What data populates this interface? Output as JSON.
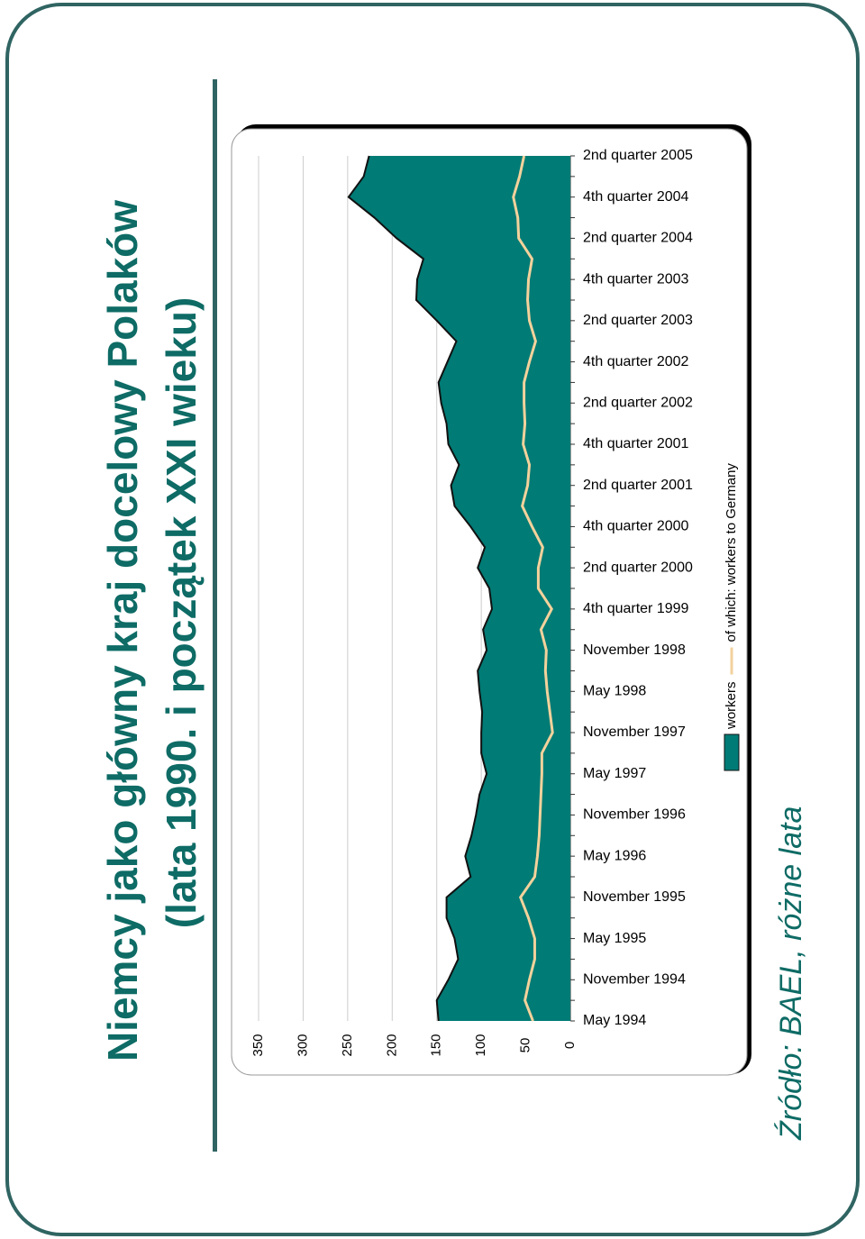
{
  "header": {
    "title_lines": [
      "Niemcy jako główny kraj docelowy Polaków",
      "(lata 1990. i początek XXI wieku)"
    ]
  },
  "footer": {
    "source": "Źródło: BAEL, różne lata"
  },
  "chart_data": {
    "type": "area",
    "categories": [
      "May 1994",
      null,
      "November 1994",
      null,
      "May 1995",
      null,
      "November 1995",
      null,
      "May 1996",
      null,
      "November 1996",
      null,
      "May 1997",
      null,
      "November 1997",
      null,
      "May 1998",
      null,
      "November 1998",
      null,
      "4th quarter 1999",
      null,
      "2nd quarter 2000",
      null,
      "4th quarter 2000",
      null,
      "2nd quarter 2001",
      null,
      "4th quarter 2001",
      null,
      "2nd quarter 2002",
      null,
      "4th quarter 2002",
      null,
      "2nd quarter 2003",
      null,
      "4th quarter 2003",
      null,
      "2nd quarter 2004",
      null,
      "4th quarter 2004",
      null,
      "2nd quarter 2005"
    ],
    "series": [
      {
        "name": "workers",
        "style": "area",
        "color": "#007b75",
        "values": [
          148,
          150,
          137,
          126,
          130,
          139,
          139,
          112,
          118,
          111,
          106,
          102,
          94,
          100,
          100,
          99,
          102,
          104,
          94,
          98,
          88,
          91,
          104,
          96,
          112,
          130,
          134,
          125,
          137,
          139,
          145,
          148,
          138,
          128,
          150,
          173,
          172,
          165,
          195,
          220,
          249,
          232,
          226
        ]
      },
      {
        "name": "of which: workers to Germany",
        "style": "line",
        "color": "#f3d29c",
        "values": [
          42,
          51,
          46,
          40,
          40,
          47,
          56,
          40,
          37,
          35,
          34,
          33,
          32,
          32,
          20,
          23,
          26,
          28,
          27,
          33,
          21,
          36,
          36,
          31,
          43,
          54,
          48,
          46,
          53,
          51,
          52,
          52,
          46,
          39,
          46,
          48,
          47,
          43,
          58,
          59,
          64,
          57,
          52
        ]
      }
    ],
    "ylim": [
      0,
      350
    ],
    "yticks": [
      0,
      50,
      100,
      150,
      200,
      250,
      300,
      350
    ],
    "grid": true
  }
}
